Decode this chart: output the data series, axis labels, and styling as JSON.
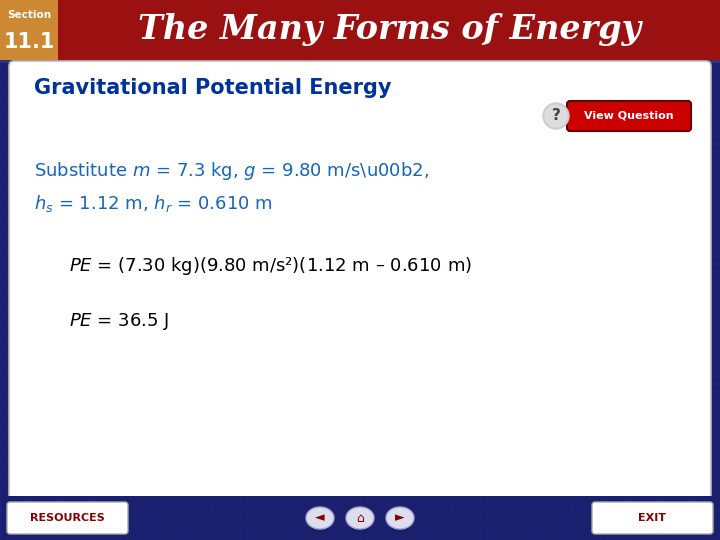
{
  "title_section": "Section",
  "title_number": "11.1",
  "title_main": "The Many Forms of Energy",
  "header_bg_color": "#9B1010",
  "header_text_color": "#FFFFFF",
  "body_bg_color": "#1a1f6e",
  "card_bg_color": "#FFFFFF",
  "subtitle": "Gravitational Potential Energy",
  "subtitle_color": "#003399",
  "substitute_color": "#1565C0",
  "eq_color": "#000000",
  "view_question_color": "#CC0000",
  "footer_bg_color": "#1a1f6e",
  "footer_resources": "RESOURCES",
  "footer_exit": "EXIT",
  "footer_btn_color": "#FFFFFF",
  "footer_btn_text_color": "#880000",
  "footer_text_color": "#FFFFFF",
  "left_block_color": "#CC8833",
  "fig_width": 7.2,
  "fig_height": 5.4
}
